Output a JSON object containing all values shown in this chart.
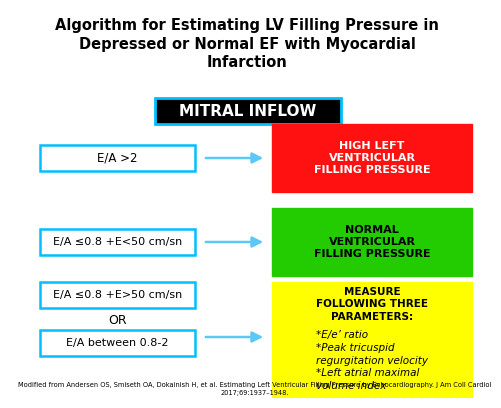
{
  "title": "Algorithm for Estimating LV Filling Pressure in\nDepressed or Normal EF with Myocardial\nInfarction",
  "title_fontsize": 10.5,
  "bg_color": "#ffffff",
  "header_box": {
    "text": "MITRAL INFLOW",
    "bg": "#000000",
    "fg": "#ffffff",
    "fontsize": 11,
    "border_color": "#00bfff"
  },
  "rows": [
    {
      "left_boxes": [
        {
          "text": "E/A >2",
          "border": "#00bfff",
          "bg": "#ffffff",
          "fg": "#000000"
        }
      ],
      "right_box": {
        "text": "HIGH LEFT\nVENTRICULAR\nFILLING PRESSURE",
        "bg": "#ff1111",
        "fg": "#ffffff"
      },
      "or_text": null
    },
    {
      "left_boxes": [
        {
          "text": "E/A ≤0.8 +E<50 cm/sn",
          "border": "#00bfff",
          "bg": "#ffffff",
          "fg": "#000000"
        }
      ],
      "right_box": {
        "text": "NORMAL\nVENTRICULAR\nFILLING PRESSURE",
        "bg": "#22cc00",
        "fg": "#000000"
      },
      "or_text": null
    },
    {
      "left_boxes": [
        {
          "text": "E/A ≤0.8 +E>50 cm/sn",
          "border": "#00bfff",
          "bg": "#ffffff",
          "fg": "#000000"
        },
        {
          "text": "E/A between 0.8-2",
          "border": "#00bfff",
          "bg": "#ffffff",
          "fg": "#000000"
        }
      ],
      "right_box": {
        "text": "MEASURE\nFOLLOWING THREE\nPARAMETERS:\n*E/e’ ratio\n*Peak tricuspid\nregurgitation velocity\n*Left atrial maximal\nvolume index",
        "bg": "#ffff00",
        "fg": "#000000"
      },
      "or_text": "OR"
    }
  ],
  "footnote": "Modified from Andersen OS, Smiseth OA, Dokainish H, et al. Estimating Left Ventricular Filling Pressure by Echocardiography. J Am Coll Cardiol\n2017;69:1937–1948.",
  "footnote_fontsize": 4.8,
  "arrow_color": "#5bc8f5"
}
